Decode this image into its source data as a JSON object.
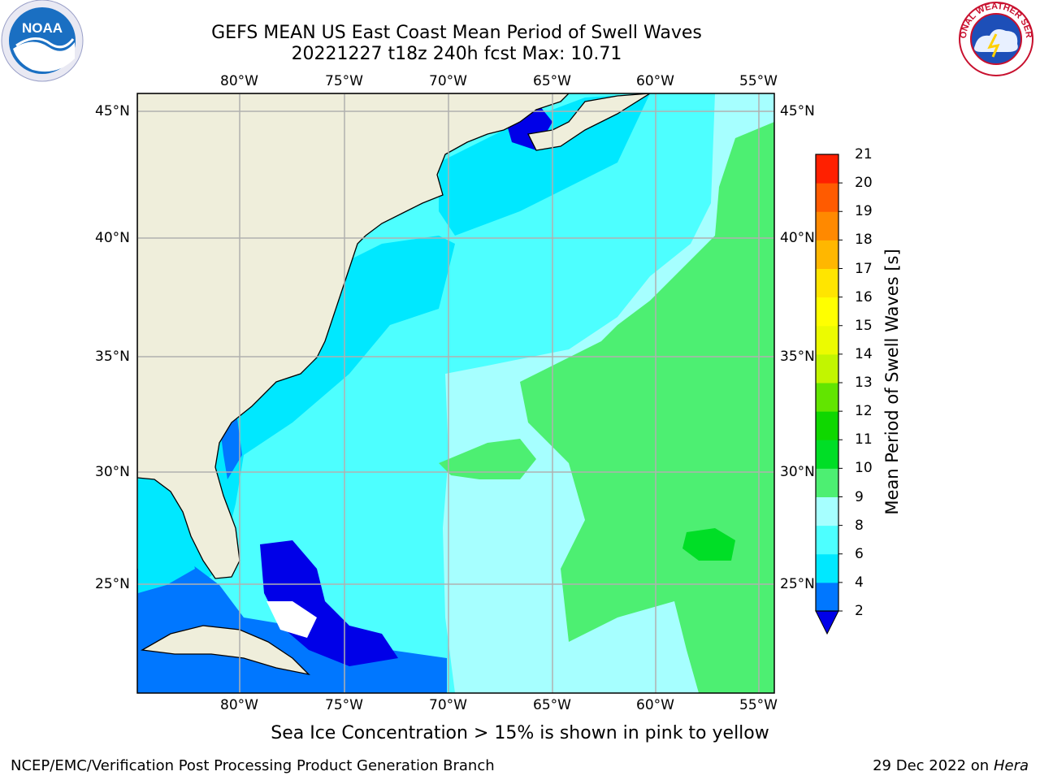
{
  "header": {
    "title_line1": "GEFS MEAN US East Coast Mean Period of Swell Waves",
    "title_line2": "20221227 t18z 240h fcst   Max: 10.71"
  },
  "map": {
    "lon_labels": [
      "80°W",
      "75°W",
      "70°W",
      "65°W",
      "60°W",
      "55°W"
    ],
    "lat_labels": [
      "45°N",
      "40°N",
      "35°N",
      "30°N",
      "25°N"
    ],
    "land_color": "#efeedb",
    "grid_color": "#b0b0b0"
  },
  "colorbar": {
    "title": "Mean Period of Swell Waves [s]",
    "labels": [
      "2",
      "4",
      "6",
      "8",
      "9",
      "10",
      "11",
      "12",
      "13",
      "14",
      "15",
      "16",
      "17",
      "18",
      "19",
      "20",
      "21"
    ],
    "colors": [
      "#0077ff",
      "#00e8ff",
      "#4dffff",
      "#a6ffff",
      "#4def72",
      "#00de26",
      "#0fd700",
      "#62e500",
      "#c2f500",
      "#ecfb00",
      "#ffff00",
      "#ffe500",
      "#ffb700",
      "#ff8900",
      "#ff5b00",
      "#ff2000"
    ],
    "under_color": "#0000e8"
  },
  "note": "Sea Ice Concentration > 15% is shown in pink to yellow",
  "footer": {
    "left": "NCEP/EMC/Verification Post Processing Product Generation Branch",
    "date": "29 Dec 2022 on",
    "machine": "Hera"
  },
  "logos": {
    "left": "NOAA",
    "right_arc": "NATIONAL WEATHER SERVICE"
  }
}
